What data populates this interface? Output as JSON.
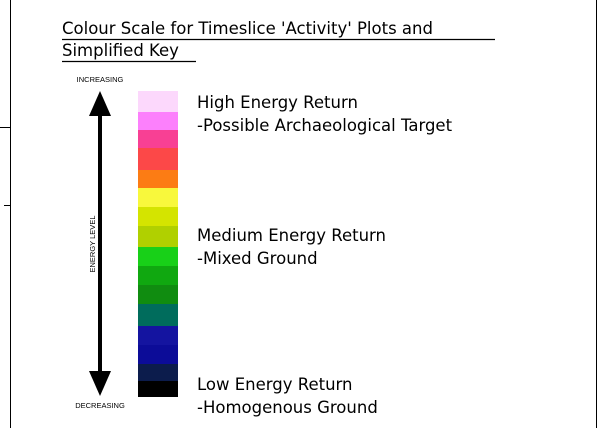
{
  "title": {
    "line1": "Colour Scale for Timeslice 'Activity' Plots and",
    "line2": "Simplified Key"
  },
  "axis": {
    "top": "INCREASING",
    "label": "ENERGY LEVEL",
    "bottom": "DECREASING"
  },
  "levels": [
    {
      "heading": "High Energy Return",
      "description": "-Possible Archaeological Target"
    },
    {
      "heading": "Medium Energy Return",
      "description": "-Mixed Ground"
    },
    {
      "heading": "Low Energy Return",
      "description": "-Homogenous Ground"
    }
  ]
}
